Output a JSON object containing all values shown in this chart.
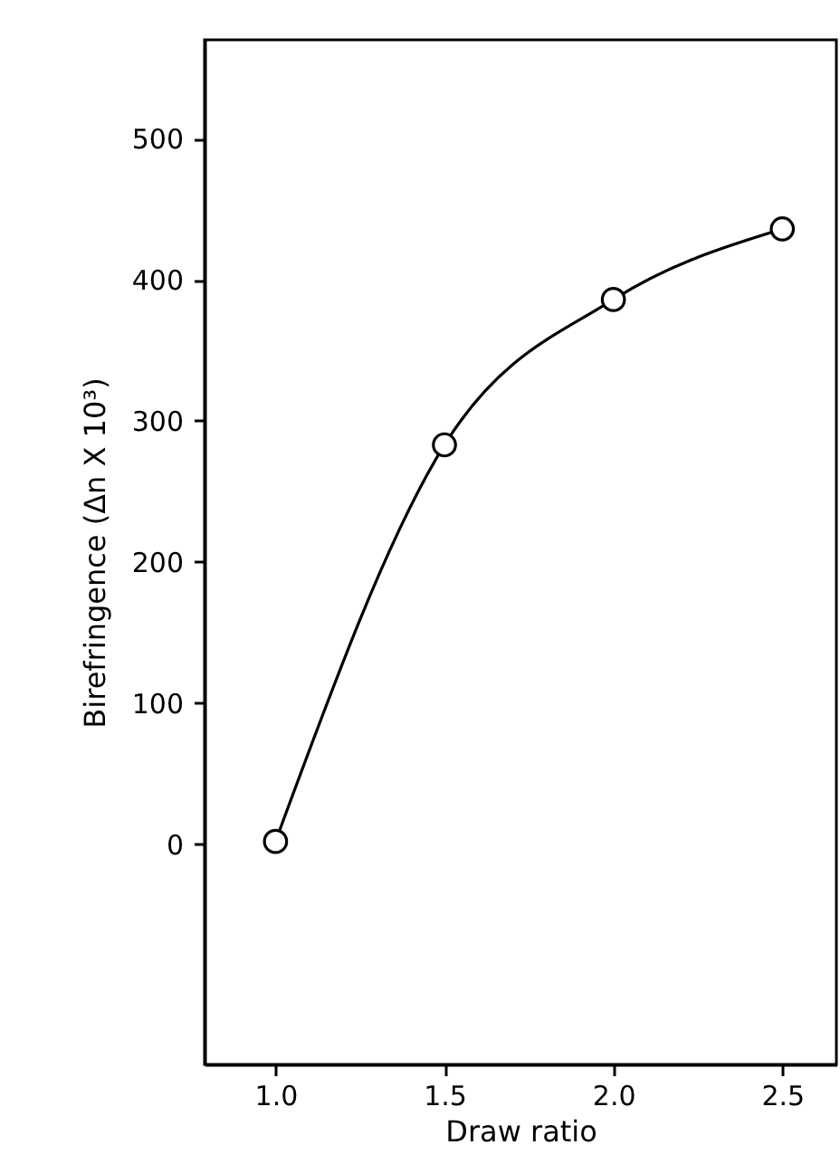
{
  "chart_data": {
    "type": "line",
    "xlabel": "Draw ratio",
    "ylabel": "Birefringence (Δn X 10³)",
    "x": [
      1.0,
      1.5,
      2.0,
      2.5
    ],
    "series": [
      {
        "color": "#000000",
        "values": [
          2,
          283,
          386,
          436
        ]
      }
    ],
    "xlim": [
      0.79,
      2.66
    ],
    "xticks": [
      {
        "value": 1.0,
        "label": "1.0"
      },
      {
        "value": 1.5,
        "label": "1.5"
      },
      {
        "value": 2.0,
        "label": "2.0"
      },
      {
        "value": 2.5,
        "label": "2.5"
      }
    ],
    "ylim": [
      -156,
      570
    ],
    "yticks": [
      0,
      100,
      200,
      300,
      400,
      500
    ],
    "marker": "circle",
    "line_style": "solid",
    "grid": false
  }
}
